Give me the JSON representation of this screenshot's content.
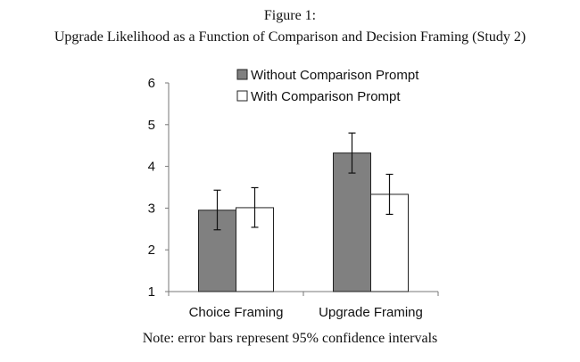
{
  "figure": {
    "label": "Figure 1:",
    "title": "Upgrade Likelihood as a Function of Comparison and Decision Framing (Study 2)",
    "note": "Note: error bars represent 95% confidence intervals"
  },
  "chart_data": {
    "type": "bar",
    "categories": [
      "Choice Framing",
      "Upgrade Framing"
    ],
    "series": [
      {
        "name": "Without Comparison Prompt",
        "values": [
          2.95,
          4.32
        ],
        "ci_low": [
          2.48,
          3.84
        ],
        "ci_high": [
          3.43,
          4.8
        ],
        "color": "#808080"
      },
      {
        "name": "With Comparison Prompt",
        "values": [
          3.01,
          3.33
        ],
        "ci_low": [
          2.54,
          2.85
        ],
        "ci_high": [
          3.49,
          3.81
        ],
        "color": "#ffffff"
      }
    ],
    "ylim": [
      1,
      6
    ],
    "yticks": [
      "1",
      "2",
      "3",
      "4",
      "5",
      "6"
    ],
    "legend": "top-right",
    "grid": false
  }
}
